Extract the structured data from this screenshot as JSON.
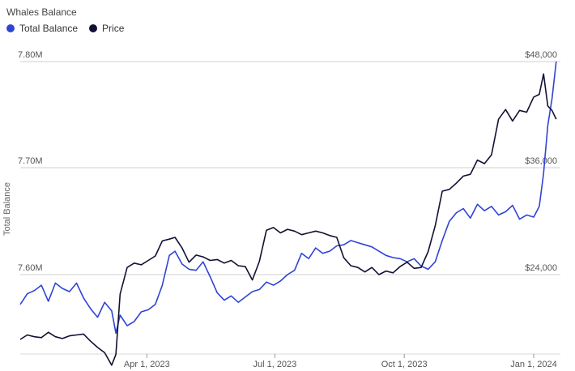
{
  "chart_data": {
    "type": "line",
    "title": "Whales Balance",
    "ylabel": "Total Balance",
    "y_left": {
      "ticks": [
        "7.60M",
        "7.70M",
        "7.80M"
      ],
      "values": [
        7600000,
        7700000,
        7800000
      ]
    },
    "y_right": {
      "ticks": [
        "$24,000",
        "$36,000",
        "$48,000"
      ],
      "values": [
        24000,
        36000,
        48000
      ]
    },
    "x_ticks": [
      "Apr 1, 2023",
      "Jul 1, 2023",
      "Oct 1, 2023",
      "Jan 1, 2024"
    ],
    "x_tick_dates": [
      "2023-04-01",
      "2023-07-01",
      "2023-10-01",
      "2024-01-01"
    ],
    "x_range": [
      "2023-01-01",
      "2024-01-20"
    ],
    "legend_position": "top-left",
    "grid": true,
    "series": [
      {
        "name": "Total Balance",
        "color": "#2f44d6",
        "axis": "left",
        "points": [
          [
            "2023-01-01",
            7572000
          ],
          [
            "2023-01-06",
            7582000
          ],
          [
            "2023-01-11",
            7585000
          ],
          [
            "2023-01-16",
            7590000
          ],
          [
            "2023-01-21",
            7575000
          ],
          [
            "2023-01-26",
            7592000
          ],
          [
            "2023-01-31",
            7587000
          ],
          [
            "2023-02-05",
            7584000
          ],
          [
            "2023-02-10",
            7592000
          ],
          [
            "2023-02-15",
            7578000
          ],
          [
            "2023-02-20",
            7568000
          ],
          [
            "2023-02-25",
            7560000
          ],
          [
            "2023-03-02",
            7574000
          ],
          [
            "2023-03-07",
            7566000
          ],
          [
            "2023-03-10",
            7545000
          ],
          [
            "2023-03-13",
            7562000
          ],
          [
            "2023-03-18",
            7552000
          ],
          [
            "2023-03-23",
            7556000
          ],
          [
            "2023-03-28",
            7565000
          ],
          [
            "2023-04-02",
            7567000
          ],
          [
            "2023-04-07",
            7572000
          ],
          [
            "2023-04-12",
            7590000
          ],
          [
            "2023-04-17",
            7618000
          ],
          [
            "2023-04-21",
            7622000
          ],
          [
            "2023-04-26",
            7610000
          ],
          [
            "2023-05-01",
            7605000
          ],
          [
            "2023-05-06",
            7604000
          ],
          [
            "2023-05-11",
            7612000
          ],
          [
            "2023-05-16",
            7598000
          ],
          [
            "2023-05-21",
            7583000
          ],
          [
            "2023-05-26",
            7576000
          ],
          [
            "2023-05-31",
            7580000
          ],
          [
            "2023-06-05",
            7574000
          ],
          [
            "2023-06-10",
            7579000
          ],
          [
            "2023-06-15",
            7584000
          ],
          [
            "2023-06-20",
            7586000
          ],
          [
            "2023-06-25",
            7593000
          ],
          [
            "2023-06-30",
            7590000
          ],
          [
            "2023-07-05",
            7594000
          ],
          [
            "2023-07-10",
            7600000
          ],
          [
            "2023-07-15",
            7604000
          ],
          [
            "2023-07-20",
            7620000
          ],
          [
            "2023-07-25",
            7615000
          ],
          [
            "2023-07-30",
            7625000
          ],
          [
            "2023-08-04",
            7620000
          ],
          [
            "2023-08-09",
            7622000
          ],
          [
            "2023-08-14",
            7627000
          ],
          [
            "2023-08-19",
            7628000
          ],
          [
            "2023-08-24",
            7632000
          ],
          [
            "2023-08-29",
            7630000
          ],
          [
            "2023-09-03",
            7628000
          ],
          [
            "2023-09-08",
            7626000
          ],
          [
            "2023-09-13",
            7622000
          ],
          [
            "2023-09-18",
            7618000
          ],
          [
            "2023-09-23",
            7616000
          ],
          [
            "2023-09-28",
            7615000
          ],
          [
            "2023-10-03",
            7612000
          ],
          [
            "2023-10-08",
            7615000
          ],
          [
            "2023-10-13",
            7608000
          ],
          [
            "2023-10-18",
            7605000
          ],
          [
            "2023-10-23",
            7612000
          ],
          [
            "2023-10-28",
            7632000
          ],
          [
            "2023-11-02",
            7650000
          ],
          [
            "2023-11-07",
            7658000
          ],
          [
            "2023-11-12",
            7662000
          ],
          [
            "2023-11-17",
            7653000
          ],
          [
            "2023-11-22",
            7666000
          ],
          [
            "2023-11-27",
            7660000
          ],
          [
            "2023-12-02",
            7664000
          ],
          [
            "2023-12-07",
            7656000
          ],
          [
            "2023-12-12",
            7659000
          ],
          [
            "2023-12-17",
            7665000
          ],
          [
            "2023-12-22",
            7652000
          ],
          [
            "2023-12-27",
            7656000
          ],
          [
            "2024-01-01",
            7654000
          ],
          [
            "2024-01-05",
            7664000
          ],
          [
            "2024-01-08",
            7695000
          ],
          [
            "2024-01-11",
            7740000
          ],
          [
            "2024-01-14",
            7765000
          ],
          [
            "2024-01-17",
            7800000
          ]
        ]
      },
      {
        "name": "Price",
        "color": "#111133",
        "axis": "right",
        "points": [
          [
            "2023-01-01",
            16700
          ],
          [
            "2023-01-06",
            17200
          ],
          [
            "2023-01-11",
            17000
          ],
          [
            "2023-01-16",
            16900
          ],
          [
            "2023-01-21",
            17500
          ],
          [
            "2023-01-26",
            17000
          ],
          [
            "2023-01-31",
            16800
          ],
          [
            "2023-02-05",
            17100
          ],
          [
            "2023-02-10",
            17200
          ],
          [
            "2023-02-15",
            17300
          ],
          [
            "2023-02-20",
            16500
          ],
          [
            "2023-02-25",
            15800
          ],
          [
            "2023-03-02",
            15200
          ],
          [
            "2023-03-07",
            13800
          ],
          [
            "2023-03-10",
            15000
          ],
          [
            "2023-03-13",
            21800
          ],
          [
            "2023-03-18",
            24800
          ],
          [
            "2023-03-23",
            25300
          ],
          [
            "2023-03-28",
            25100
          ],
          [
            "2023-04-02",
            25600
          ],
          [
            "2023-04-07",
            26100
          ],
          [
            "2023-04-12",
            27800
          ],
          [
            "2023-04-17",
            28000
          ],
          [
            "2023-04-21",
            28200
          ],
          [
            "2023-04-26",
            27000
          ],
          [
            "2023-05-01",
            25400
          ],
          [
            "2023-05-06",
            26200
          ],
          [
            "2023-05-11",
            26000
          ],
          [
            "2023-05-16",
            25600
          ],
          [
            "2023-05-21",
            25700
          ],
          [
            "2023-05-26",
            25300
          ],
          [
            "2023-05-31",
            25600
          ],
          [
            "2023-06-05",
            25000
          ],
          [
            "2023-06-10",
            24900
          ],
          [
            "2023-06-15",
            23400
          ],
          [
            "2023-06-20",
            25500
          ],
          [
            "2023-06-25",
            29000
          ],
          [
            "2023-06-30",
            29300
          ],
          [
            "2023-07-05",
            28700
          ],
          [
            "2023-07-10",
            29100
          ],
          [
            "2023-07-15",
            28900
          ],
          [
            "2023-07-20",
            28500
          ],
          [
            "2023-07-25",
            28700
          ],
          [
            "2023-07-30",
            28900
          ],
          [
            "2023-08-04",
            28700
          ],
          [
            "2023-08-09",
            28400
          ],
          [
            "2023-08-14",
            28200
          ],
          [
            "2023-08-19",
            25900
          ],
          [
            "2023-08-24",
            25000
          ],
          [
            "2023-08-29",
            24800
          ],
          [
            "2023-09-03",
            24300
          ],
          [
            "2023-09-08",
            24800
          ],
          [
            "2023-09-13",
            24000
          ],
          [
            "2023-09-18",
            24400
          ],
          [
            "2023-09-23",
            24200
          ],
          [
            "2023-09-28",
            24900
          ],
          [
            "2023-10-03",
            25400
          ],
          [
            "2023-10-08",
            24700
          ],
          [
            "2023-10-13",
            24800
          ],
          [
            "2023-10-18",
            26600
          ],
          [
            "2023-10-23",
            29500
          ],
          [
            "2023-10-28",
            33400
          ],
          [
            "2023-11-02",
            33600
          ],
          [
            "2023-11-07",
            34300
          ],
          [
            "2023-11-12",
            35100
          ],
          [
            "2023-11-17",
            35300
          ],
          [
            "2023-11-22",
            36900
          ],
          [
            "2023-11-27",
            36500
          ],
          [
            "2023-12-02",
            37500
          ],
          [
            "2023-12-07",
            41500
          ],
          [
            "2023-12-12",
            42600
          ],
          [
            "2023-12-17",
            41300
          ],
          [
            "2023-12-22",
            42500
          ],
          [
            "2023-12-27",
            42300
          ],
          [
            "2024-01-01",
            44000
          ],
          [
            "2024-01-05",
            44300
          ],
          [
            "2024-01-08",
            46600
          ],
          [
            "2024-01-11",
            43000
          ],
          [
            "2024-01-14",
            42500
          ],
          [
            "2024-01-17",
            41500
          ]
        ]
      }
    ]
  }
}
